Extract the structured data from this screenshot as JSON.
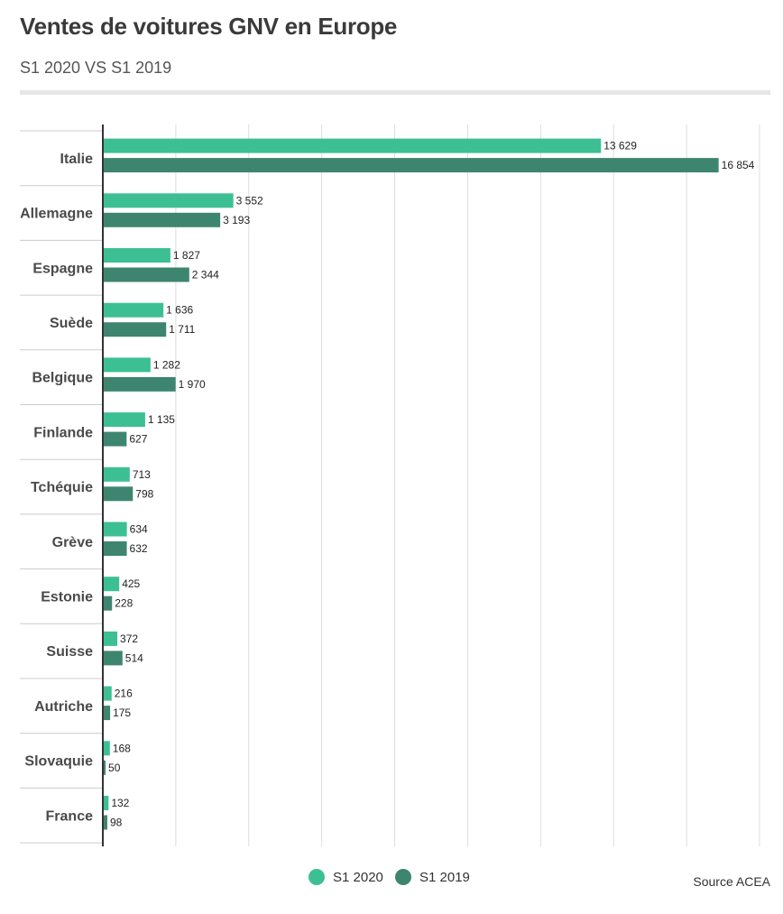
{
  "header": {
    "title": "Ventes de voitures GNV en Europe",
    "subtitle": "S1 2020 VS S1 2019"
  },
  "footer": {
    "source": "Source ACEA"
  },
  "colors": {
    "s2020": "#3dbf94",
    "s2019": "#3e8570",
    "grid": "#dddddd",
    "axis": "#333333"
  },
  "chart_data": {
    "type": "bar",
    "orientation": "horizontal",
    "title": "Ventes de voitures GNV en Europe",
    "subtitle": "S1 2020 VS S1 2019",
    "categories": [
      "Italie",
      "Allemagne",
      "Espagne",
      "Suède",
      "Belgique",
      "Finlande",
      "Tchéquie",
      "Grève",
      "Estonie",
      "Suisse",
      "Autriche",
      "Slovaquie",
      "France"
    ],
    "series": [
      {
        "name": "S1 2020",
        "values": [
          13629,
          3552,
          1827,
          1636,
          1282,
          1135,
          713,
          634,
          425,
          372,
          216,
          168,
          132
        ],
        "labels": [
          "13 629",
          "3 552",
          "1 827",
          "1 636",
          "1 282",
          "1 135",
          "713",
          "634",
          "425",
          "372",
          "216",
          "168",
          "132"
        ]
      },
      {
        "name": "S1 2019",
        "values": [
          16854,
          3193,
          2344,
          1711,
          1970,
          627,
          798,
          632,
          228,
          514,
          175,
          50,
          98
        ],
        "labels": [
          "16 854",
          "3 193",
          "2 344",
          "1 711",
          "1 970",
          "627",
          "798",
          "632",
          "228",
          "514",
          "175",
          "50",
          "98"
        ]
      }
    ],
    "xlim": [
      0,
      18000
    ],
    "grid": true,
    "legend_position": "bottom-center"
  }
}
